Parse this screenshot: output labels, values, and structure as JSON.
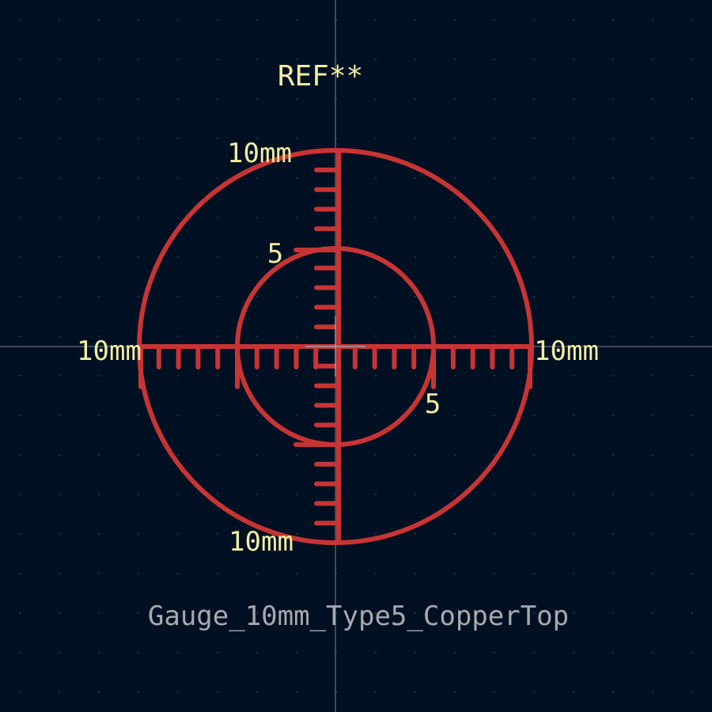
{
  "footprint": {
    "reference": "REF**",
    "value": "Gauge_10mm_Type5_CopperTop"
  },
  "gauge": {
    "labels": {
      "top": "10mm",
      "left": "10mm",
      "right": "10mm",
      "bottom": "10mm",
      "inner_top": "5",
      "inner_right": "5"
    }
  },
  "colors": {
    "background": "#001023",
    "copper": "#c83434",
    "reference_text": "#f2eda1",
    "value_text": "#a9a9ad",
    "crosshair": "#9aa0aa",
    "grid_dot": "#3a4a60"
  }
}
